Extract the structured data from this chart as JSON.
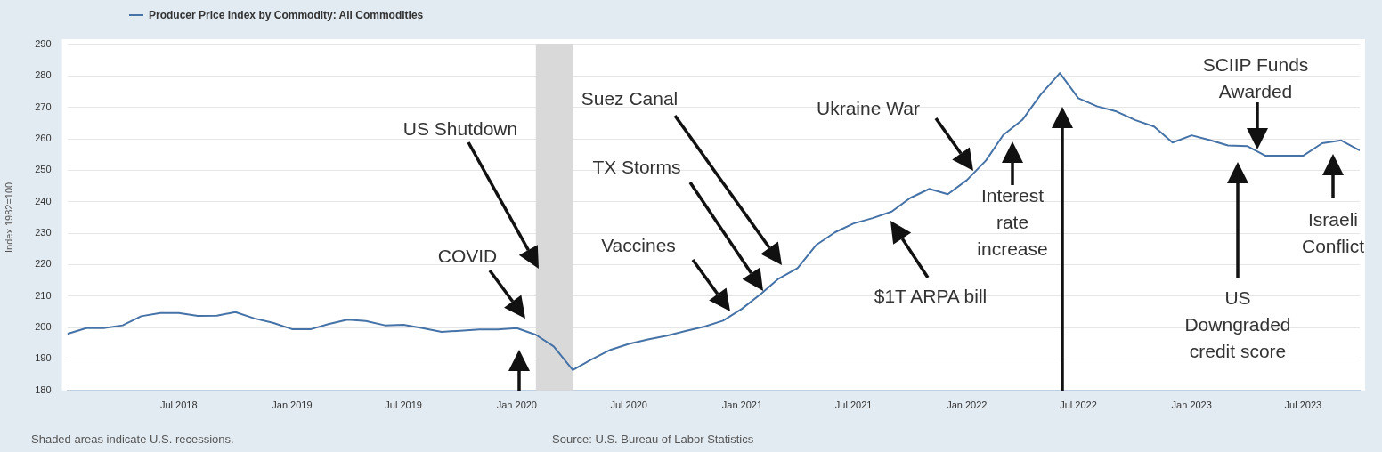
{
  "chart_data": {
    "type": "line",
    "ylabel": "Index 1982=100",
    "legend": "top left",
    "grid": "y",
    "marker": "none",
    "line_style": "solid",
    "x": [
      "2018-01",
      "2018-02",
      "2018-03",
      "2018-04",
      "2018-05",
      "2018-06",
      "2018-07",
      "2018-08",
      "2018-09",
      "2018-10",
      "2018-11",
      "2018-12",
      "2019-01",
      "2019-02",
      "2019-03",
      "2019-04",
      "2019-05",
      "2019-06",
      "2019-07",
      "2019-08",
      "2019-09",
      "2019-10",
      "2019-11",
      "2019-12",
      "2020-01",
      "2020-02",
      "2020-03",
      "2020-04",
      "2020-05",
      "2020-06",
      "2020-07",
      "2020-08",
      "2020-09",
      "2020-10",
      "2020-11",
      "2020-12",
      "2021-01",
      "2021-02",
      "2021-03",
      "2021-04",
      "2021-05",
      "2021-06",
      "2021-07",
      "2021-08",
      "2021-09",
      "2021-10",
      "2021-11",
      "2021-12",
      "2022-01",
      "2022-02",
      "2022-03",
      "2022-04",
      "2022-05",
      "2022-06",
      "2022-07",
      "2022-08",
      "2022-09",
      "2022-10",
      "2022-11",
      "2022-12",
      "2023-01",
      "2023-02",
      "2023-03",
      "2023-04",
      "2023-05",
      "2023-06",
      "2023-07",
      "2023-08",
      "2023-09",
      "2023-10"
    ],
    "series": [
      {
        "name": "Producer Price Index by Commodity: All Commodities",
        "color": "#4572a7",
        "values": [
          198.0,
          199.8,
          199.8,
          200.7,
          203.6,
          204.6,
          204.6,
          203.7,
          203.8,
          204.9,
          202.9,
          201.5,
          199.5,
          199.5,
          201.1,
          202.5,
          202.1,
          200.7,
          200.9,
          199.8,
          198.6,
          199.0,
          199.4,
          199.4,
          199.8,
          197.7,
          194.0,
          186.5,
          189.8,
          192.9,
          194.8,
          196.2,
          197.4,
          198.9,
          200.3,
          202.2,
          206.0,
          210.8,
          215.5,
          218.9,
          226.2,
          230.3,
          233.1,
          234.8,
          236.9,
          241.2,
          244.1,
          242.4,
          246.9,
          253.1,
          261.2,
          266.0,
          274.1,
          280.9,
          272.9,
          270.3,
          268.7,
          266.0,
          263.9,
          258.8,
          261.1,
          259.5,
          257.9,
          257.7,
          254.6,
          254.6,
          254.6,
          258.6,
          259.5,
          256.3
        ]
      }
    ],
    "xlim": [
      "2018-01",
      "2023-10"
    ],
    "xticks": [
      {
        "value": "2018-07",
        "label": "Jul 2018"
      },
      {
        "value": "2019-01",
        "label": "Jan 2019"
      },
      {
        "value": "2019-07",
        "label": "Jul 2019"
      },
      {
        "value": "2020-01",
        "label": "Jan 2020"
      },
      {
        "value": "2020-07",
        "label": "Jul 2020"
      },
      {
        "value": "2021-01",
        "label": "Jan 2021"
      },
      {
        "value": "2021-07",
        "label": "Jul 2021"
      },
      {
        "value": "2022-01",
        "label": "Jan 2022"
      },
      {
        "value": "2022-07",
        "label": "Jul 2022"
      },
      {
        "value": "2023-01",
        "label": "Jan 2023"
      },
      {
        "value": "2023-07",
        "label": "Jul 2023"
      }
    ],
    "ylim": [
      180,
      290
    ],
    "yticks": [
      180,
      190,
      200,
      210,
      220,
      230,
      240,
      250,
      260,
      270,
      280,
      290
    ],
    "bands": [
      {
        "axis": "x",
        "from": "2020-02",
        "to": "2020-04",
        "color": "#d9d9d9"
      }
    ],
    "annotations": [
      "US Shutdown",
      "COVID",
      "Vaccines",
      "TX Storms",
      "Suez Canal",
      "$1T ARPA bill",
      "Ukraine War",
      "Interest rate increase",
      "SCIIP Funds Awarded",
      "US Downgraded credit score",
      "Israeli Conflict",
      "Shaded areas indicate U.S. recessions.",
      "Source: U.S. Bureau of Labor Statistics"
    ]
  }
}
